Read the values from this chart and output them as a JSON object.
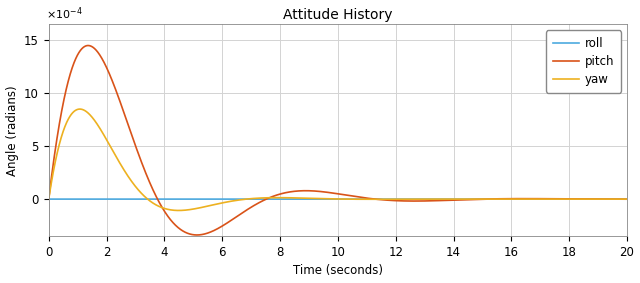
{
  "title": "Attitude History",
  "xlabel": "Time (seconds)",
  "ylabel": "Angle (radians)",
  "xlim": [
    0,
    20
  ],
  "ylim": [
    -0.00035,
    0.00165
  ],
  "yticks": [
    0,
    0.0005,
    0.001,
    0.0015
  ],
  "xticks": [
    0,
    2,
    4,
    6,
    8,
    10,
    12,
    14,
    16,
    18,
    20
  ],
  "legend": [
    "roll",
    "pitch",
    "yaw"
  ],
  "colors": {
    "roll": "#4DAADF",
    "pitch": "#D95319",
    "yaw": "#EDB120"
  },
  "linewidth": 1.2,
  "grid_color": "#D3D3D3",
  "background_color": "#FFFFFF",
  "title_fontsize": 10,
  "label_fontsize": 8.5,
  "tick_fontsize": 8.5,
  "pitch_peak": 0.00145,
  "pitch_peak_t": 1.5,
  "pitch_zero_t": 3.3,
  "pitch_trough": -0.00025,
  "pitch_trough_t": 5.5,
  "yaw_peak": 0.00085,
  "yaw_peak_t": 1.0,
  "yaw_trough": -8e-05,
  "yaw_trough_t": 4.5
}
